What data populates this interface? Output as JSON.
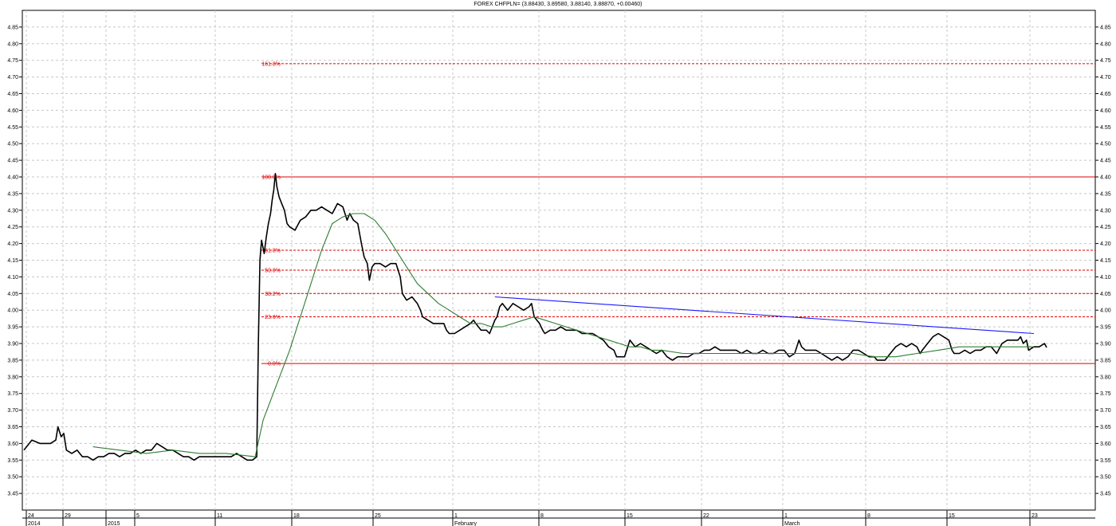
{
  "chart_data": {
    "type": "line",
    "title": "FOREX CHFPLN= (3.88430, 3.89580, 3.88140, 3.88870, +0.00460)",
    "ylim": [
      3.4,
      4.9
    ],
    "y_ticks": [
      3.45,
      3.5,
      3.55,
      3.6,
      3.65,
      3.7,
      3.75,
      3.8,
      3.85,
      3.9,
      3.95,
      4.0,
      4.05,
      4.1,
      4.15,
      4.2,
      4.25,
      4.3,
      4.35,
      4.4,
      4.45,
      4.5,
      4.55,
      4.6,
      4.65,
      4.7,
      4.75,
      4.8,
      4.85
    ],
    "x_ticks": [
      {
        "day": "24",
        "sub": "2014"
      },
      {
        "day": "29",
        "sub": ""
      },
      {
        "day": "",
        "sub": "2015"
      },
      {
        "day": "5",
        "sub": ""
      },
      {
        "day": "11",
        "sub": ""
      },
      {
        "day": "18",
        "sub": ""
      },
      {
        "day": "25",
        "sub": ""
      },
      {
        "day": "1",
        "sub": "February"
      },
      {
        "day": "8",
        "sub": ""
      },
      {
        "day": "15",
        "sub": ""
      },
      {
        "day": "22",
        "sub": ""
      },
      {
        "day": "1",
        "sub": "March"
      },
      {
        "day": "8",
        "sub": ""
      },
      {
        "day": "15",
        "sub": ""
      },
      {
        "day": "23",
        "sub": ""
      }
    ],
    "grid": true,
    "series": [
      {
        "key": "price",
        "color": "#000000",
        "points": [
          [
            0,
            3.58
          ],
          [
            1.5,
            3.61
          ],
          [
            3,
            3.6
          ],
          [
            4.2,
            3.6
          ],
          [
            5,
            3.6
          ],
          [
            6,
            3.61
          ],
          [
            6.4,
            3.65
          ],
          [
            7,
            3.62
          ],
          [
            7.5,
            3.63
          ],
          [
            8,
            3.58
          ],
          [
            9,
            3.57
          ],
          [
            10,
            3.58
          ],
          [
            11,
            3.56
          ],
          [
            12,
            3.56
          ],
          [
            13,
            3.55
          ],
          [
            14,
            3.56
          ],
          [
            15,
            3.56
          ],
          [
            16,
            3.57
          ],
          [
            17,
            3.57
          ],
          [
            18,
            3.56
          ],
          [
            19,
            3.57
          ],
          [
            20,
            3.57
          ],
          [
            21,
            3.58
          ],
          [
            22,
            3.57
          ],
          [
            23,
            3.58
          ],
          [
            24,
            3.58
          ],
          [
            25,
            3.6
          ],
          [
            26,
            3.59
          ],
          [
            27,
            3.58
          ],
          [
            28,
            3.58
          ],
          [
            29,
            3.57
          ],
          [
            30,
            3.56
          ],
          [
            31,
            3.56
          ],
          [
            32,
            3.55
          ],
          [
            33,
            3.56
          ],
          [
            34,
            3.56
          ],
          [
            35,
            3.56
          ],
          [
            36,
            3.56
          ],
          [
            37,
            3.56
          ],
          [
            38,
            3.56
          ],
          [
            39,
            3.56
          ],
          [
            40,
            3.57
          ],
          [
            41,
            3.56
          ],
          [
            42,
            3.55
          ],
          [
            43,
            3.55
          ],
          [
            43.8,
            3.56
          ],
          [
            44.1,
            3.9
          ],
          [
            44.4,
            4.15
          ],
          [
            44.7,
            4.21
          ],
          [
            45.2,
            4.17
          ],
          [
            45.6,
            4.22
          ],
          [
            46,
            4.26
          ],
          [
            46.4,
            4.29
          ],
          [
            46.7,
            4.33
          ],
          [
            47,
            4.36
          ],
          [
            47.3,
            4.41
          ],
          [
            47.6,
            4.37
          ],
          [
            48,
            4.34
          ],
          [
            48.5,
            4.32
          ],
          [
            49,
            4.3
          ],
          [
            49.5,
            4.26
          ],
          [
            50,
            4.25
          ],
          [
            51,
            4.24
          ],
          [
            52,
            4.27
          ],
          [
            53,
            4.28
          ],
          [
            54,
            4.3
          ],
          [
            55,
            4.3
          ],
          [
            56,
            4.31
          ],
          [
            57,
            4.3
          ],
          [
            58,
            4.29
          ],
          [
            59,
            4.32
          ],
          [
            60,
            4.31
          ],
          [
            60.8,
            4.27
          ],
          [
            61.3,
            4.29
          ],
          [
            62,
            4.27
          ],
          [
            62.8,
            4.26
          ],
          [
            63.5,
            4.2
          ],
          [
            64,
            4.16
          ],
          [
            64.6,
            4.14
          ],
          [
            65,
            4.09
          ],
          [
            65.5,
            4.13
          ],
          [
            66,
            4.14
          ],
          [
            67,
            4.14
          ],
          [
            68,
            4.13
          ],
          [
            69,
            4.14
          ],
          [
            70,
            4.14
          ],
          [
            70.8,
            4.1
          ],
          [
            71.2,
            4.05
          ],
          [
            72,
            4.03
          ],
          [
            73,
            4.04
          ],
          [
            74,
            4.02
          ],
          [
            74.6,
            4.0
          ],
          [
            75,
            3.98
          ],
          [
            76,
            3.97
          ],
          [
            77,
            3.96
          ],
          [
            78,
            3.96
          ],
          [
            79,
            3.96
          ],
          [
            79.5,
            3.94
          ],
          [
            80,
            3.93
          ],
          [
            81,
            3.93
          ],
          [
            82,
            3.94
          ],
          [
            83,
            3.95
          ],
          [
            84,
            3.96
          ],
          [
            84.6,
            3.97
          ],
          [
            85,
            3.96
          ],
          [
            86,
            3.94
          ],
          [
            87,
            3.94
          ],
          [
            87.6,
            3.93
          ],
          [
            88.6,
            3.97
          ],
          [
            89,
            3.98
          ],
          [
            89.5,
            4.01
          ],
          [
            90,
            4.02
          ],
          [
            91,
            4.0
          ],
          [
            92,
            4.02
          ],
          [
            93,
            4.01
          ],
          [
            94,
            4.0
          ],
          [
            95,
            4.01
          ],
          [
            95.5,
            4.02
          ],
          [
            96,
            3.98
          ],
          [
            97,
            3.96
          ],
          [
            97.6,
            3.94
          ],
          [
            98,
            3.93
          ],
          [
            99,
            3.94
          ],
          [
            100,
            3.94
          ],
          [
            101,
            3.95
          ],
          [
            102,
            3.94
          ],
          [
            103,
            3.94
          ],
          [
            104,
            3.94
          ],
          [
            105,
            3.93
          ],
          [
            106,
            3.93
          ],
          [
            107,
            3.93
          ],
          [
            108,
            3.92
          ],
          [
            109,
            3.91
          ],
          [
            110,
            3.89
          ],
          [
            111,
            3.88
          ],
          [
            111.5,
            3.86
          ],
          [
            112,
            3.86
          ],
          [
            113,
            3.86
          ],
          [
            114,
            3.91
          ],
          [
            115,
            3.89
          ],
          [
            116,
            3.9
          ],
          [
            117,
            3.89
          ],
          [
            118,
            3.88
          ],
          [
            119,
            3.87
          ],
          [
            120,
            3.88
          ],
          [
            121,
            3.86
          ],
          [
            122,
            3.85
          ],
          [
            123,
            3.86
          ],
          [
            124,
            3.86
          ],
          [
            125,
            3.86
          ],
          [
            126,
            3.87
          ],
          [
            127,
            3.87
          ],
          [
            128,
            3.88
          ],
          [
            129,
            3.88
          ],
          [
            130,
            3.89
          ],
          [
            131,
            3.88
          ],
          [
            132,
            3.88
          ],
          [
            133,
            3.88
          ],
          [
            134,
            3.88
          ],
          [
            135,
            3.87
          ],
          [
            136,
            3.88
          ],
          [
            137,
            3.87
          ],
          [
            138,
            3.87
          ],
          [
            139,
            3.88
          ],
          [
            140,
            3.87
          ],
          [
            141,
            3.87
          ],
          [
            142,
            3.88
          ],
          [
            143,
            3.88
          ],
          [
            144,
            3.86
          ],
          [
            145,
            3.87
          ],
          [
            145.8,
            3.91
          ],
          [
            146.3,
            3.89
          ],
          [
            147,
            3.88
          ],
          [
            148,
            3.88
          ],
          [
            149,
            3.88
          ],
          [
            150,
            3.87
          ],
          [
            151,
            3.86
          ],
          [
            152,
            3.85
          ],
          [
            153,
            3.86
          ],
          [
            154,
            3.85
          ],
          [
            155,
            3.86
          ],
          [
            156,
            3.88
          ],
          [
            157,
            3.88
          ],
          [
            158,
            3.87
          ],
          [
            159,
            3.86
          ],
          [
            160,
            3.86
          ],
          [
            160.5,
            3.85
          ],
          [
            161,
            3.85
          ],
          [
            162,
            3.85
          ],
          [
            163,
            3.87
          ],
          [
            164,
            3.89
          ],
          [
            165,
            3.9
          ],
          [
            166,
            3.89
          ],
          [
            167,
            3.9
          ],
          [
            168,
            3.89
          ],
          [
            168.6,
            3.87
          ],
          [
            169,
            3.88
          ],
          [
            170,
            3.9
          ],
          [
            171,
            3.92
          ],
          [
            172,
            3.93
          ],
          [
            173,
            3.92
          ],
          [
            174,
            3.91
          ],
          [
            174.6,
            3.88
          ],
          [
            175,
            3.87
          ],
          [
            176,
            3.87
          ],
          [
            177,
            3.88
          ],
          [
            178,
            3.87
          ],
          [
            179,
            3.88
          ],
          [
            180,
            3.88
          ],
          [
            181,
            3.89
          ],
          [
            182,
            3.89
          ],
          [
            183,
            3.87
          ],
          [
            184,
            3.9
          ],
          [
            185,
            3.91
          ],
          [
            186,
            3.91
          ],
          [
            187,
            3.91
          ],
          [
            187.5,
            3.92
          ],
          [
            188,
            3.9
          ],
          [
            188.6,
            3.91
          ],
          [
            189,
            3.88
          ],
          [
            190,
            3.89
          ],
          [
            191,
            3.89
          ],
          [
            192,
            3.9
          ],
          [
            192.4,
            3.888
          ]
        ]
      },
      {
        "key": "moving-average",
        "color": "#2e7d32",
        "points": [
          [
            13,
            3.59
          ],
          [
            18,
            3.58
          ],
          [
            23,
            3.57
          ],
          [
            28,
            3.58
          ],
          [
            33,
            3.57
          ],
          [
            38,
            3.57
          ],
          [
            43.5,
            3.56
          ],
          [
            45,
            3.67
          ],
          [
            50,
            3.88
          ],
          [
            52,
            3.98
          ],
          [
            54,
            4.08
          ],
          [
            56,
            4.18
          ],
          [
            58,
            4.26
          ],
          [
            60,
            4.28
          ],
          [
            62,
            4.29
          ],
          [
            64,
            4.29
          ],
          [
            66,
            4.27
          ],
          [
            68,
            4.23
          ],
          [
            70,
            4.18
          ],
          [
            72,
            4.13
          ],
          [
            74,
            4.08
          ],
          [
            76,
            4.05
          ],
          [
            78,
            4.02
          ],
          [
            80,
            4.0
          ],
          [
            82,
            3.98
          ],
          [
            84,
            3.96
          ],
          [
            86,
            3.96
          ],
          [
            88,
            3.95
          ],
          [
            90,
            3.95
          ],
          [
            92,
            3.96
          ],
          [
            94,
            3.97
          ],
          [
            96,
            3.98
          ],
          [
            98,
            3.97
          ],
          [
            100,
            3.96
          ],
          [
            102,
            3.95
          ],
          [
            104,
            3.94
          ],
          [
            106,
            3.93
          ],
          [
            108,
            3.92
          ],
          [
            110,
            3.91
          ],
          [
            112,
            3.9
          ],
          [
            114,
            3.89
          ],
          [
            116,
            3.89
          ],
          [
            118,
            3.88
          ],
          [
            120,
            3.88
          ],
          [
            124,
            3.87
          ],
          [
            128,
            3.87
          ],
          [
            132,
            3.87
          ],
          [
            136,
            3.87
          ],
          [
            140,
            3.87
          ],
          [
            144,
            3.87
          ],
          [
            148,
            3.87
          ],
          [
            152,
            3.87
          ],
          [
            156,
            3.87
          ],
          [
            160,
            3.86
          ],
          [
            164,
            3.86
          ],
          [
            168,
            3.87
          ],
          [
            172,
            3.88
          ],
          [
            176,
            3.89
          ],
          [
            180,
            3.89
          ],
          [
            184,
            3.89
          ],
          [
            188,
            3.89
          ],
          [
            190,
            3.89
          ]
        ]
      },
      {
        "key": "trendline",
        "color": "#1a1aff",
        "points": [
          [
            88.6,
            4.04
          ],
          [
            190,
            3.93
          ]
        ]
      }
    ],
    "fibonacci": {
      "color": "#e00000",
      "levels": [
        {
          "label": "161.8%",
          "value": 4.74,
          "style": "dashed"
        },
        {
          "label": "100.0%",
          "value": 4.4,
          "style": "solid"
        },
        {
          "label": "61.8%",
          "value": 4.18,
          "style": "dashed"
        },
        {
          "label": "50.0%",
          "value": 4.12,
          "style": "dashed"
        },
        {
          "label": "38.2%",
          "value": 4.05,
          "style": "dashed"
        },
        {
          "label": "23.6%",
          "value": 3.98,
          "style": "dashed"
        },
        {
          "label": "0.0%",
          "value": 3.84,
          "style": "solid"
        }
      ]
    }
  }
}
